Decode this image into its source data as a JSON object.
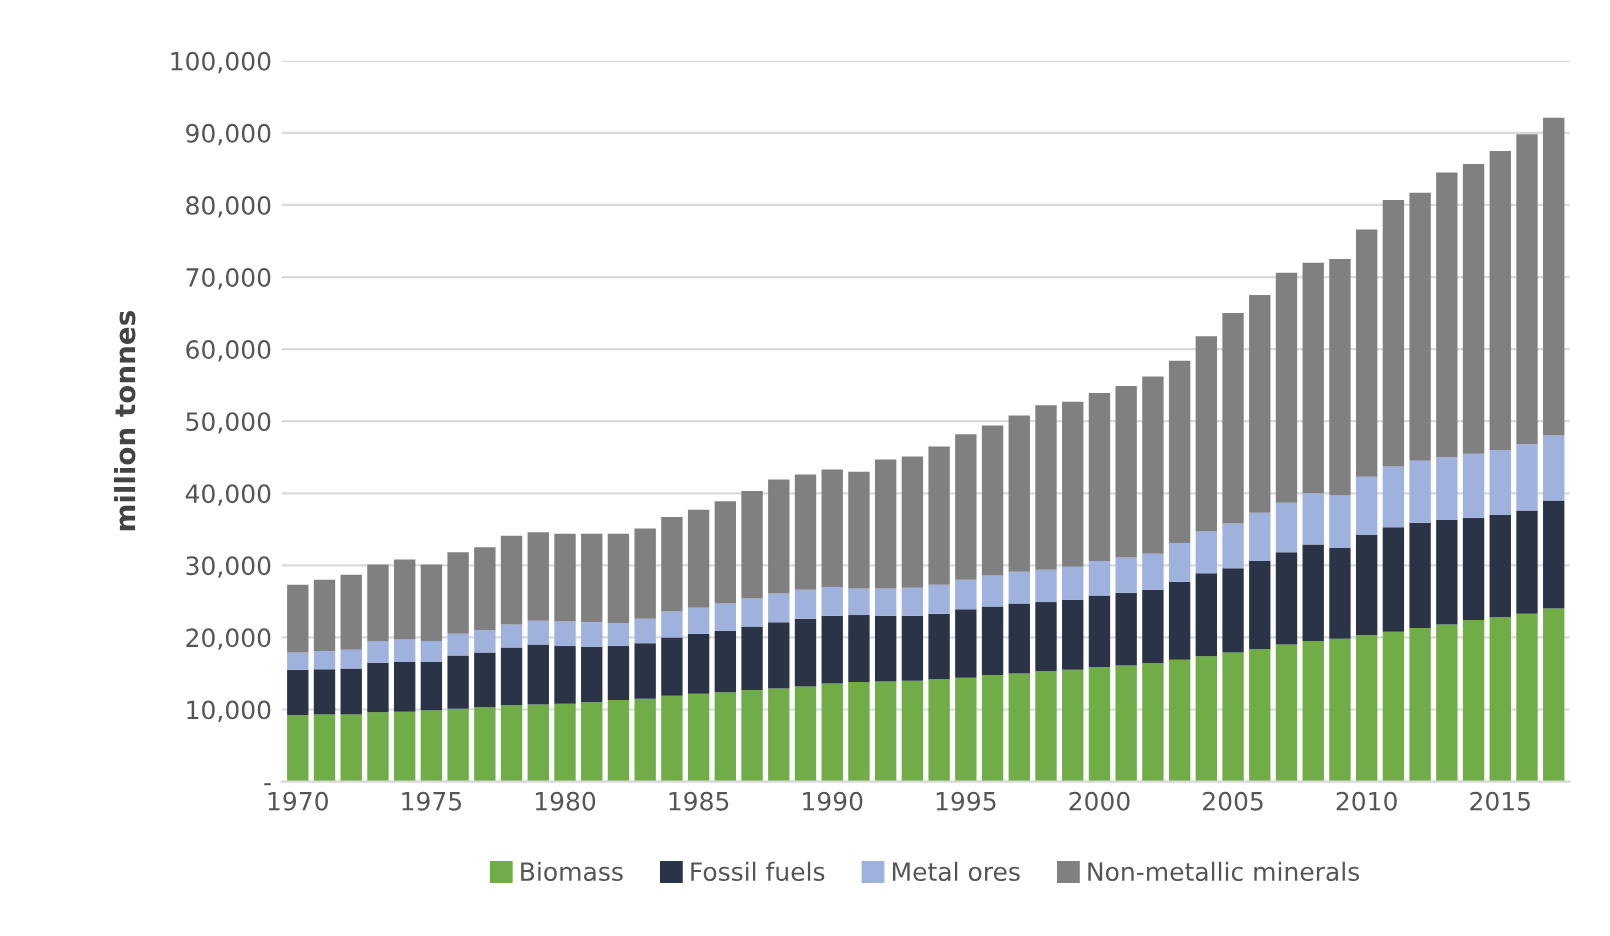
{
  "chart_data": {
    "type": "bar",
    "stacked": true,
    "ylabel": "million tonnes",
    "categories": [
      "1970",
      null,
      null,
      null,
      null,
      "1975",
      null,
      null,
      null,
      null,
      "1980",
      null,
      null,
      null,
      null,
      "1985",
      null,
      null,
      null,
      null,
      "1990",
      null,
      null,
      null,
      null,
      "1995",
      null,
      null,
      null,
      null,
      "2000",
      null,
      null,
      null,
      null,
      "2005",
      null,
      null,
      null,
      null,
      "2010",
      null,
      null,
      null,
      null,
      "2015",
      null,
      null
    ],
    "series": [
      {
        "name": "Biomass",
        "color": "#70ad47",
        "values": [
          9200,
          9300,
          9300,
          9600,
          9700,
          9900,
          10100,
          10300,
          10600,
          10700,
          10800,
          11000,
          11300,
          11500,
          11900,
          12200,
          12400,
          12700,
          12900,
          13200,
          13600,
          13800,
          13900,
          14000,
          14200,
          14400,
          14800,
          15000,
          15300,
          15500,
          15900,
          16100,
          16400,
          16900,
          17400,
          17900,
          18400,
          19000,
          19500,
          19800,
          20300,
          20800,
          21300,
          21800,
          22400,
          22800,
          23300,
          24000
        ]
      },
      {
        "name": "Fossil fuels",
        "color": "#2b3447",
        "values": [
          6300,
          6300,
          6400,
          6900,
          6900,
          6700,
          7400,
          7600,
          8000,
          8300,
          8000,
          7700,
          7500,
          7700,
          8100,
          8300,
          8500,
          8800,
          9200,
          9400,
          9400,
          9300,
          9100,
          9000,
          9100,
          9500,
          9500,
          9700,
          9600,
          9700,
          9900,
          10100,
          10200,
          10800,
          11500,
          11700,
          12200,
          12800,
          13400,
          12600,
          13900,
          14500,
          14600,
          14500,
          14200,
          14200,
          14300,
          15000
        ]
      },
      {
        "name": "Metal ores",
        "color": "#9fb1dd",
        "values": [
          2400,
          2500,
          2600,
          3000,
          3100,
          2900,
          3000,
          3100,
          3200,
          3300,
          3400,
          3400,
          3200,
          3400,
          3600,
          3600,
          3800,
          3900,
          4000,
          4000,
          4000,
          3700,
          3800,
          3900,
          4000,
          4100,
          4300,
          4400,
          4500,
          4600,
          4800,
          4900,
          5000,
          5400,
          5800,
          6200,
          6700,
          6900,
          7100,
          7300,
          8100,
          8400,
          8600,
          8700,
          8900,
          9000,
          9200,
          9000
        ]
      },
      {
        "name": "Non-metallic minerals",
        "color": "#808080",
        "values": [
          9400,
          9900,
          10400,
          10600,
          11100,
          10600,
          11300,
          11500,
          12300,
          12300,
          12200,
          12300,
          12400,
          12500,
          13100,
          13600,
          14200,
          14900,
          15800,
          16000,
          16300,
          16200,
          17900,
          18200,
          19200,
          20200,
          20800,
          21700,
          22800,
          22900,
          23300,
          23800,
          24600,
          25300,
          27100,
          29200,
          30200,
          31900,
          32000,
          32800,
          34300,
          37000,
          37200,
          39500,
          40200,
          41500,
          43000,
          44100
        ]
      }
    ],
    "ylim": [
      0,
      100000
    ],
    "yticks": [
      {
        "value": 0,
        "label": "-"
      },
      {
        "value": 10000,
        "label": "10,000"
      },
      {
        "value": 20000,
        "label": "20,000"
      },
      {
        "value": 30000,
        "label": "30,000"
      },
      {
        "value": 40000,
        "label": "40,000"
      },
      {
        "value": 50000,
        "label": "50,000"
      },
      {
        "value": 60000,
        "label": "60,000"
      },
      {
        "value": 70000,
        "label": "70,000"
      },
      {
        "value": 80000,
        "label": "80,000"
      },
      {
        "value": 90000,
        "label": "90,000"
      },
      {
        "value": 100000,
        "label": "100,000"
      }
    ],
    "grid": "y",
    "legend": "bottom"
  }
}
